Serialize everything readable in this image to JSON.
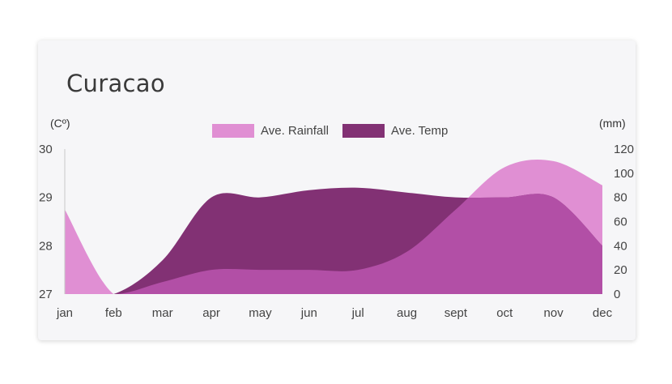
{
  "title": "Curacao",
  "units": {
    "left": "(Cº)",
    "right": "(mm)"
  },
  "legend": [
    {
      "label": "Ave. Rainfall",
      "color": "#e08fd3"
    },
    {
      "label": "Ave. Temp",
      "color": "#823174"
    }
  ],
  "chart_data": {
    "type": "area",
    "categories": [
      "jan",
      "feb",
      "mar",
      "apr",
      "may",
      "jun",
      "jul",
      "aug",
      "sept",
      "oct",
      "nov",
      "dec"
    ],
    "series": [
      {
        "name": "Ave. Rainfall",
        "axis": "right",
        "unit": "mm",
        "color": "#e08fd3",
        "values": [
          70,
          0,
          10,
          20,
          20,
          20,
          20,
          35,
          70,
          105,
          110,
          90
        ]
      },
      {
        "name": "Ave. Temp",
        "axis": "left",
        "unit": "C",
        "color": "#823174",
        "values": [
          26.9,
          26.9,
          27.7,
          29.0,
          29.0,
          29.15,
          29.2,
          29.1,
          29.0,
          29.0,
          29.0,
          28.0
        ]
      }
    ],
    "overlap_color": "#b24fa6",
    "y_left": {
      "ylim": [
        27,
        30
      ],
      "ticks": [
        "27",
        "28",
        "29",
        "30"
      ]
    },
    "y_right": {
      "ylim": [
        0,
        120
      ],
      "ticks": [
        "0",
        "20",
        "40",
        "60",
        "80",
        "100",
        "120"
      ]
    }
  }
}
